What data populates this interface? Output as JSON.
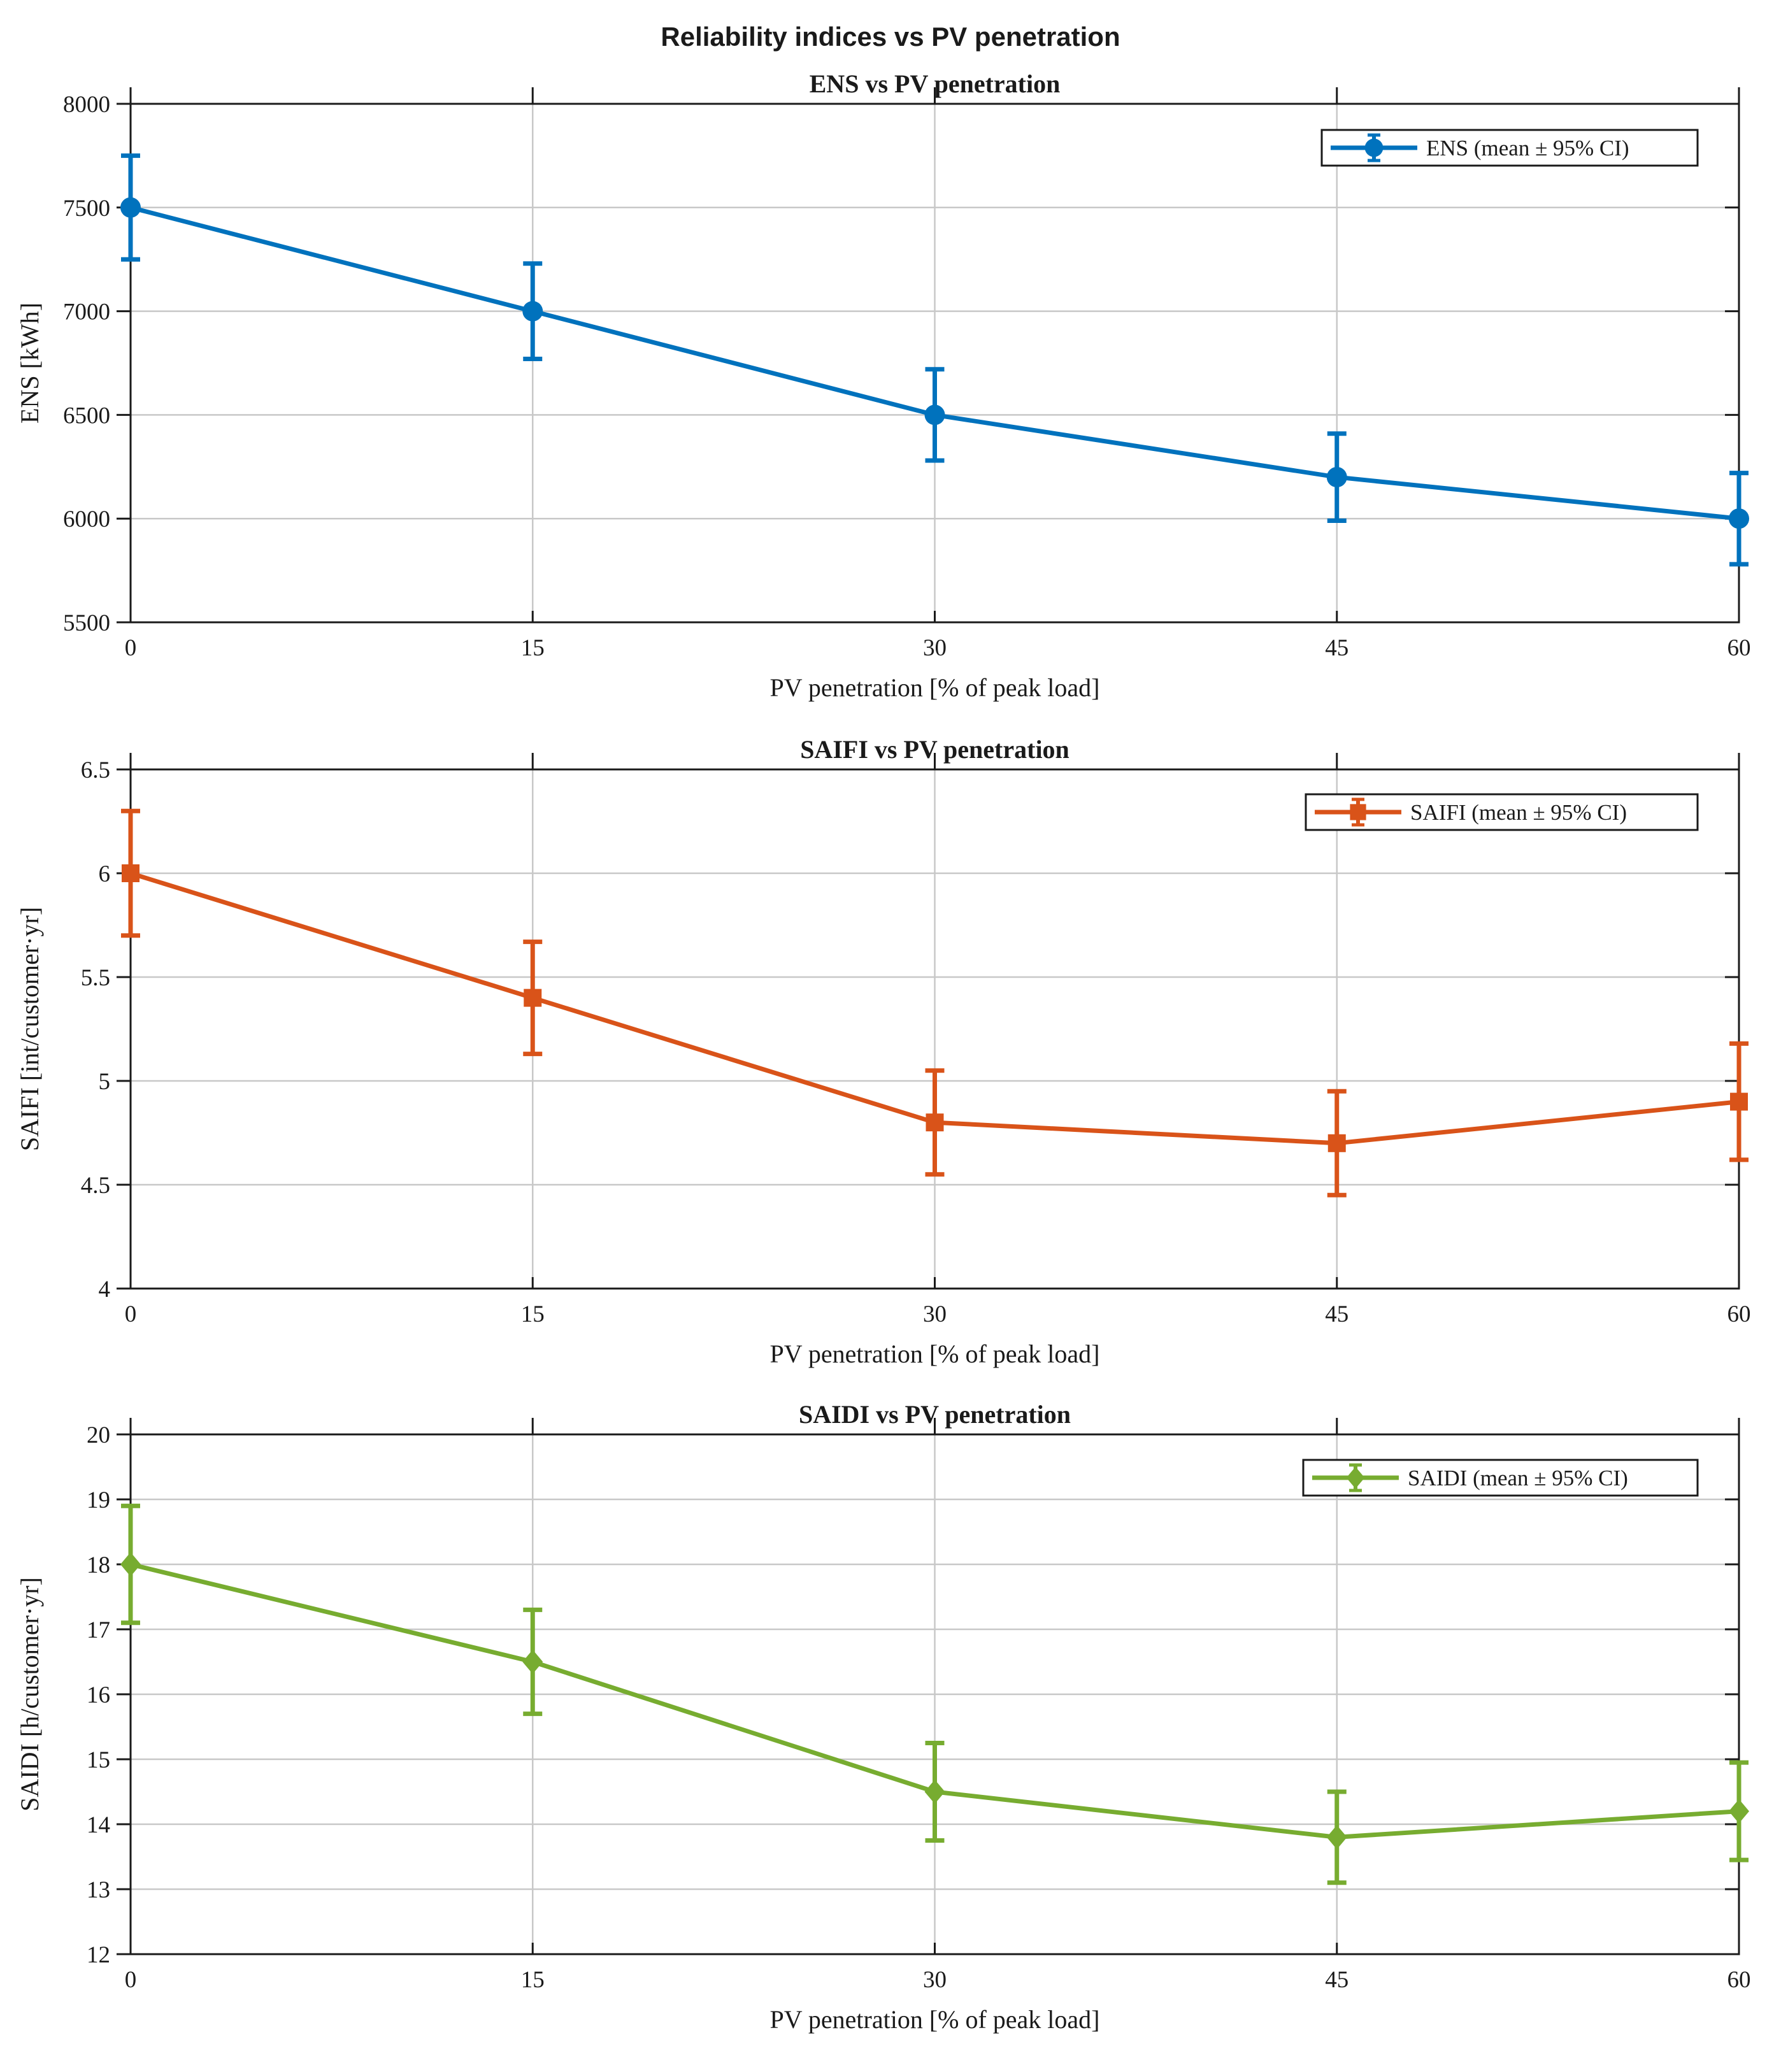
{
  "figure": {
    "suptitle": "Reliability indices vs PV penetration"
  },
  "chart_data": [
    {
      "type": "line",
      "title": "ENS vs PV penetration",
      "xlabel": "PV penetration [% of peak load]",
      "ylabel": "ENS [kWh]",
      "x": [
        0,
        15,
        30,
        45,
        60
      ],
      "xticks": [
        "0",
        "15",
        "30",
        "45",
        "60"
      ],
      "xlim": [
        0,
        60
      ],
      "ylim": [
        5500,
        8000
      ],
      "yticks": [
        "5500",
        "6000",
        "6500",
        "7000",
        "7500",
        "8000"
      ],
      "grid": true,
      "legend_position": "top-right",
      "series": [
        {
          "name": "ENS (mean ± 95% CI)",
          "color": "#0072BD",
          "marker": "circle",
          "values": [
            7500,
            7000,
            6500,
            6200,
            6000
          ],
          "ci_lower": [
            7250,
            6770,
            6280,
            5990,
            5780
          ],
          "ci_upper": [
            7750,
            7230,
            6720,
            6410,
            6220
          ]
        }
      ]
    },
    {
      "type": "line",
      "title": "SAIFI vs PV penetration",
      "xlabel": "PV penetration [% of peak load]",
      "ylabel": "SAIFI [int/customer·yr]",
      "x": [
        0,
        15,
        30,
        45,
        60
      ],
      "xticks": [
        "0",
        "15",
        "30",
        "45",
        "60"
      ],
      "xlim": [
        0,
        60
      ],
      "ylim": [
        4,
        6.5
      ],
      "yticks": [
        "4",
        "4.5",
        "5",
        "5.5",
        "6",
        "6.5"
      ],
      "grid": true,
      "legend_position": "top-right",
      "series": [
        {
          "name": "SAIFI (mean ± 95% CI)",
          "color": "#D95319",
          "marker": "square",
          "values": [
            6.0,
            5.4,
            4.8,
            4.7,
            4.9
          ],
          "ci_lower": [
            5.7,
            5.13,
            4.55,
            4.45,
            4.62
          ],
          "ci_upper": [
            6.3,
            5.67,
            5.05,
            4.95,
            5.18
          ]
        }
      ]
    },
    {
      "type": "line",
      "title": "SAIDI vs PV penetration",
      "xlabel": "PV penetration [% of peak load]",
      "ylabel": "SAIDI [h/customer·yr]",
      "x": [
        0,
        15,
        30,
        45,
        60
      ],
      "xticks": [
        "0",
        "15",
        "30",
        "45",
        "60"
      ],
      "xlim": [
        0,
        60
      ],
      "ylim": [
        12,
        20
      ],
      "yticks": [
        "12",
        "13",
        "14",
        "15",
        "16",
        "17",
        "18",
        "19",
        "20"
      ],
      "grid": true,
      "legend_position": "top-right",
      "series": [
        {
          "name": "SAIDI (mean ± 95% CI)",
          "color": "#77AC30",
          "marker": "diamond",
          "values": [
            18.0,
            16.5,
            14.5,
            13.8,
            14.2
          ],
          "ci_lower": [
            17.1,
            15.7,
            13.75,
            13.1,
            13.45
          ],
          "ci_upper": [
            18.9,
            17.3,
            15.25,
            14.5,
            14.95
          ]
        }
      ]
    }
  ]
}
